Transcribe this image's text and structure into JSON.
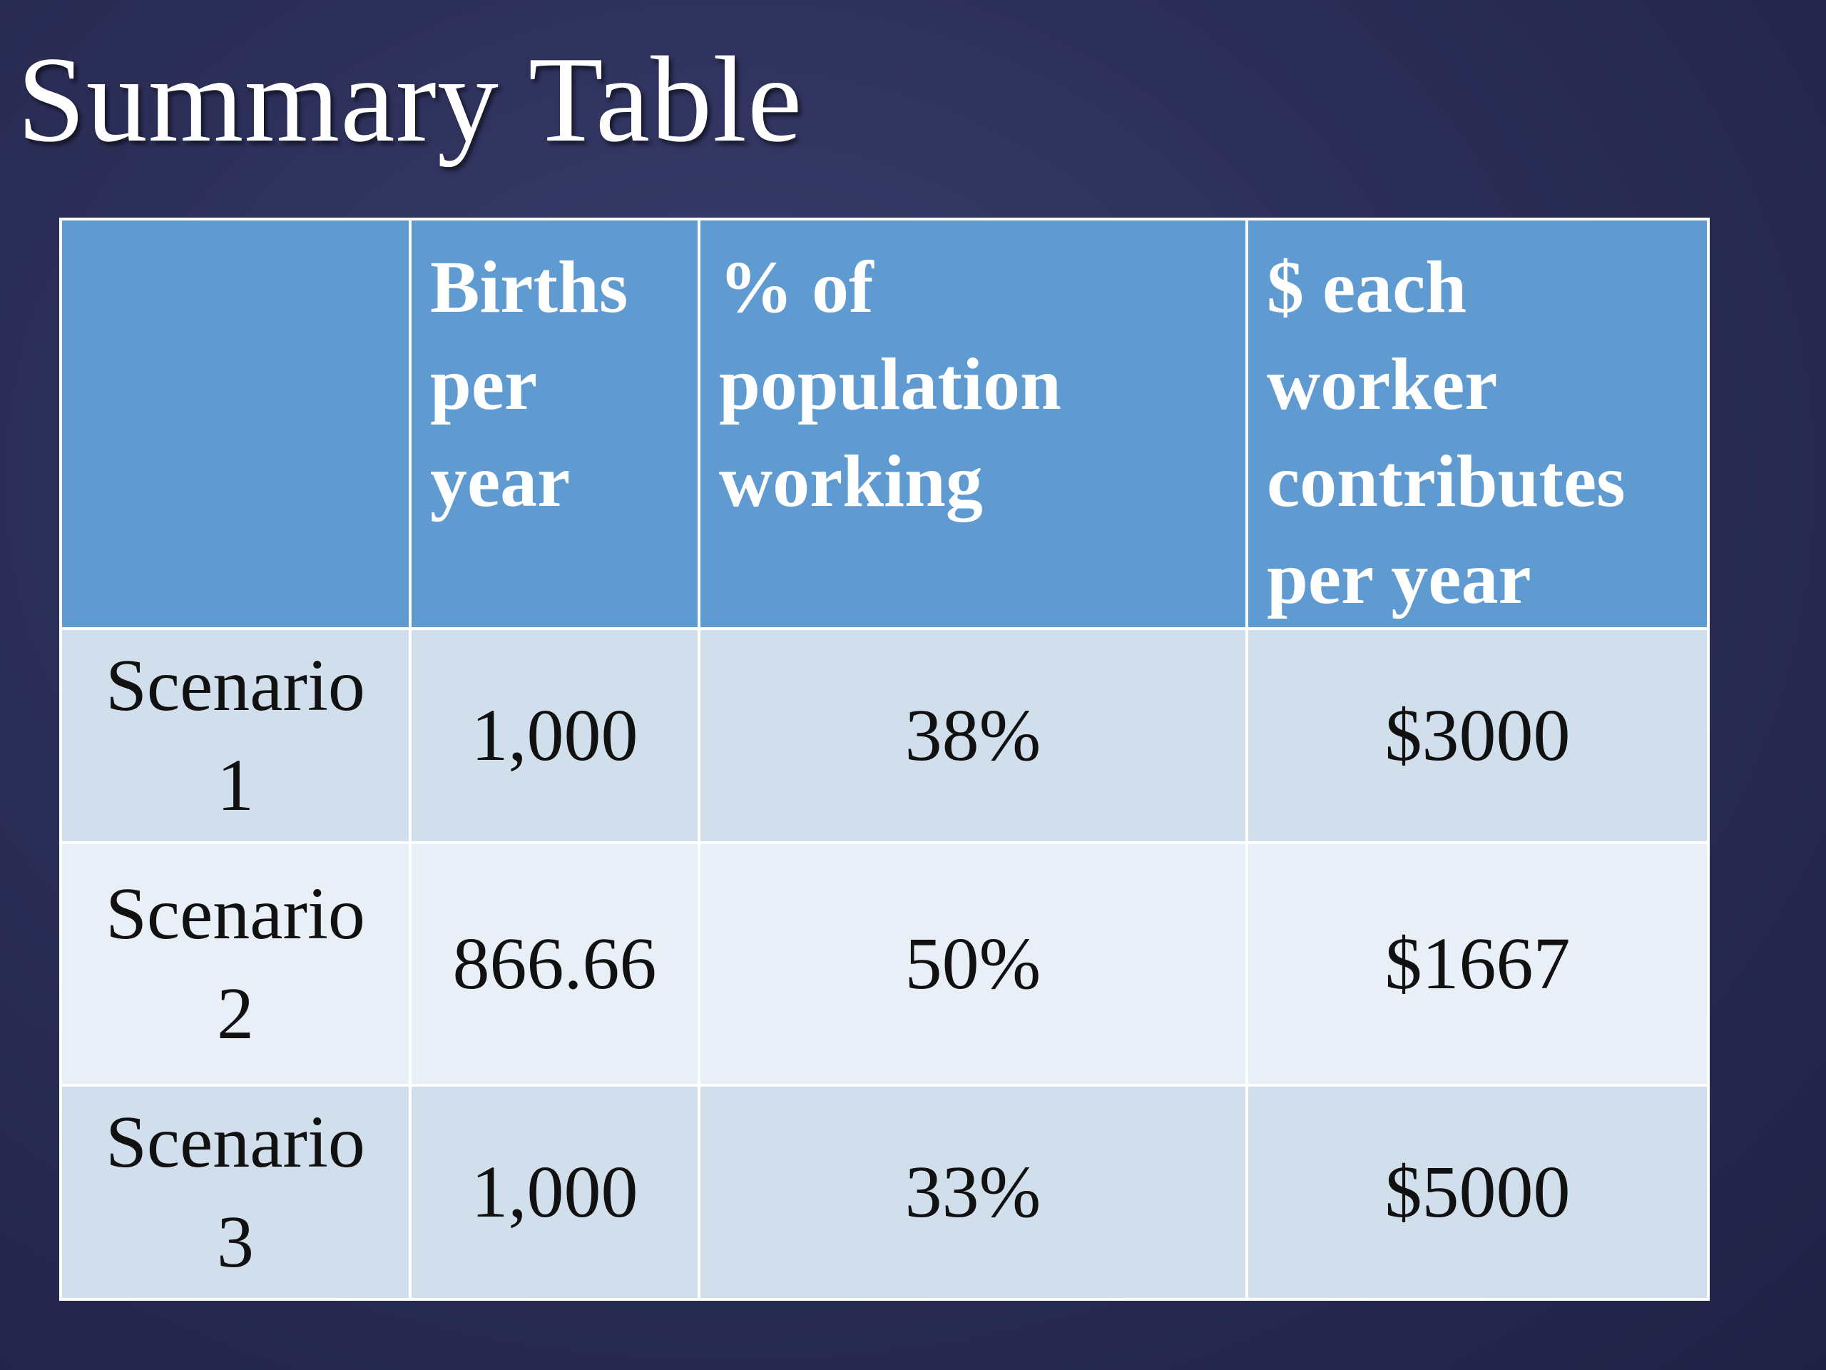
{
  "slide": {
    "title": "Summary Table"
  },
  "table": {
    "header": {
      "blank": "",
      "births_lines": [
        "Births",
        "per",
        "year"
      ],
      "percent_lines": [
        "% of",
        "population",
        "working"
      ],
      "dollars_lines": [
        "$ each",
        "worker",
        "contributes",
        "per year"
      ]
    },
    "rows": [
      {
        "label_lines": [
          "Scenario",
          "1"
        ],
        "births": "1,000",
        "percent": "38%",
        "dollars": "$3000"
      },
      {
        "label_lines": [
          "Scenario",
          "2"
        ],
        "births": "866.66",
        "percent": "50%",
        "dollars": "$1667"
      },
      {
        "label_lines": [
          "Scenario",
          "3"
        ],
        "births": "1,000",
        "percent": "33%",
        "dollars": "$5000"
      }
    ]
  },
  "colors": {
    "header_fill": "#5f9ad1",
    "row_fill_dark": "#d1dfec",
    "row_fill_light": "#e9eff7",
    "background": "#2c2f58"
  }
}
